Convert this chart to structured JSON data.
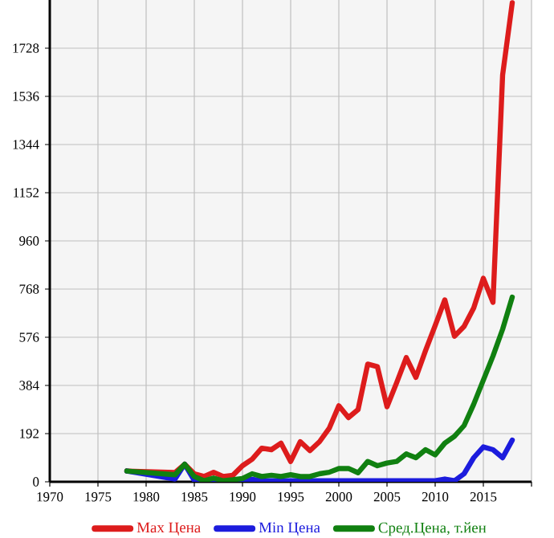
{
  "chart_data": {
    "type": "line",
    "xlim": [
      1970,
      2020
    ],
    "ylim": [
      0,
      1920
    ],
    "xticks": [
      1970,
      1975,
      1980,
      1985,
      1990,
      1995,
      2000,
      2005,
      2010,
      2015,
      {
        "value": 2020,
        "label": null
      }
    ],
    "yticks": [
      0,
      192,
      384,
      576,
      768,
      960,
      1152,
      1344,
      1536,
      1728
    ],
    "grid": true,
    "legend": "bottom",
    "marker": "none",
    "line_style": "solid",
    "series": [
      {
        "name": "Max Цена",
        "color": "#dd1c1c",
        "x": [
          1978,
          1983,
          1984,
          1985,
          1986,
          1987,
          1988,
          1989,
          1990,
          1991,
          1992,
          1993,
          1994,
          1995,
          1996,
          1997,
          1998,
          1999,
          2000,
          2001,
          2002,
          2003,
          2004,
          2005,
          2006,
          2007,
          2008,
          2009,
          2010,
          2011,
          2012,
          2013,
          2014,
          2015,
          2016,
          2017,
          2018
        ],
        "values": [
          43,
          37,
          70,
          32,
          21,
          38,
          21,
          26,
          64,
          90,
          134,
          128,
          154,
          81,
          160,
          124,
          160,
          213,
          303,
          256,
          288,
          469,
          459,
          299,
          395,
          495,
          416,
          523,
          623,
          725,
          580,
          619,
          693,
          811,
          715,
          1621,
          1909
        ]
      },
      {
        "name": "Min Цена",
        "color": "#1c1cdd",
        "x": [
          1978,
          1983,
          1984,
          1985,
          1986,
          1987,
          1988,
          1989,
          1990,
          1991,
          1992,
          1993,
          1994,
          1995,
          1996,
          1997,
          1998,
          1999,
          2000,
          2001,
          2002,
          2003,
          2004,
          2005,
          2006,
          2007,
          2008,
          2009,
          2010,
          2011,
          2012,
          2013,
          2014,
          2015,
          2016,
          2017,
          2018
        ],
        "values": [
          43,
          11,
          70,
          5,
          0,
          0,
          0,
          0,
          6,
          10,
          4,
          4,
          4,
          4,
          4,
          4,
          4,
          4,
          4,
          4,
          4,
          4,
          4,
          4,
          4,
          4,
          4,
          4,
          4,
          11,
          4,
          32,
          96,
          139,
          128,
          96,
          166
        ]
      },
      {
        "name": "Сред.Цена, т.йен",
        "color": "#108010",
        "x": [
          1978,
          1983,
          1984,
          1985,
          1986,
          1987,
          1988,
          1989,
          1990,
          1991,
          1992,
          1993,
          1994,
          1995,
          1996,
          1997,
          1998,
          1999,
          2000,
          2001,
          2002,
          2003,
          2004,
          2005,
          2006,
          2007,
          2008,
          2009,
          2010,
          2011,
          2012,
          2013,
          2014,
          2015,
          2016,
          2017,
          2018
        ],
        "values": [
          43,
          28,
          70,
          21,
          4,
          15,
          4,
          8,
          13,
          32,
          21,
          26,
          21,
          28,
          21,
          21,
          32,
          38,
          53,
          53,
          36,
          81,
          64,
          75,
          81,
          111,
          96,
          128,
          107,
          154,
          181,
          224,
          309,
          405,
          501,
          608,
          736
        ]
      }
    ]
  }
}
